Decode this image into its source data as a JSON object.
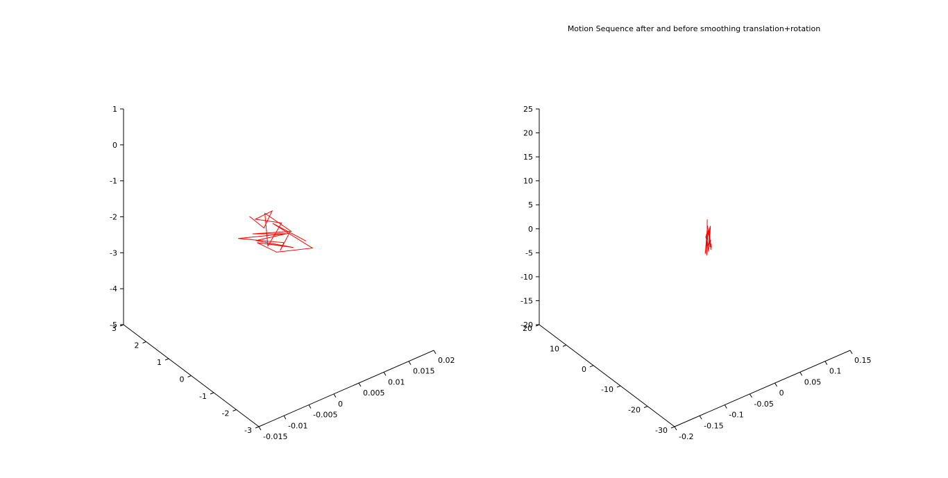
{
  "figure_title": "Motion Sequence after and before smoothing translation+rotation",
  "chart_data": [
    {
      "type": "line3d",
      "series": [
        {
          "color": "#ff0000"
        }
      ],
      "x_axis": {
        "range": [
          -0.015,
          0.02
        ],
        "tick_labels": [
          "-0.015",
          "-0.01",
          "-0.005",
          "0",
          "0.005",
          "0.01",
          "0.015",
          "0.02"
        ]
      },
      "y_axis": {
        "range": [
          -3,
          3
        ],
        "tick_labels": [
          "-3",
          "-2",
          "-1",
          "0",
          "1",
          "2",
          "3"
        ]
      },
      "z_axis": {
        "range": [
          -5,
          1
        ],
        "tick_labels": [
          "-5",
          "-4",
          "-3",
          "-2",
          "-1",
          "0",
          "1"
        ]
      },
      "grid": false,
      "trajectory": [
        [
          -0.002,
          0.3,
          -1.5
        ],
        [
          0.0,
          0.1,
          -1.85
        ],
        [
          0.003,
          0.4,
          -1.7
        ],
        [
          0.001,
          0.7,
          -1.95
        ],
        [
          0.004,
          0.2,
          -2.0
        ],
        [
          -0.001,
          -0.3,
          -2.1
        ],
        [
          0.002,
          0.5,
          -1.75
        ],
        [
          0.005,
          0.0,
          -2.2
        ],
        [
          0.0,
          0.6,
          -2.25
        ],
        [
          0.003,
          -0.2,
          -2.05
        ],
        [
          -0.002,
          0.8,
          -2.35
        ],
        [
          0.004,
          0.1,
          -2.5
        ],
        [
          0.001,
          -0.4,
          -2.3
        ],
        [
          0.006,
          0.3,
          -2.45
        ],
        [
          0.002,
          0.9,
          -2.7
        ],
        [
          0.005,
          -0.1,
          -2.6
        ],
        [
          0.0,
          0.4,
          -2.4
        ],
        [
          0.003,
          0.2,
          -2.75
        ],
        [
          0.007,
          -0.5,
          -2.55
        ],
        [
          0.004,
          0.6,
          -2.2
        ],
        [
          0.008,
          0.0,
          -2.65
        ]
      ]
    },
    {
      "type": "line3d",
      "series": [
        {
          "color": "#ff0000"
        }
      ],
      "x_axis": {
        "range": [
          -0.2,
          0.15
        ],
        "tick_labels": [
          "-0.2",
          "-0.15",
          "-0.1",
          "-0.05",
          "0",
          "0.05",
          "0.1",
          "0.15"
        ]
      },
      "y_axis": {
        "range": [
          -30,
          20
        ],
        "tick_labels": [
          "-30",
          "-20",
          "-10",
          "0",
          "10",
          "20"
        ]
      },
      "z_axis": {
        "range": [
          -20,
          25
        ],
        "tick_labels": [
          "-20",
          "-15",
          "-10",
          "-5",
          "0",
          "5",
          "10",
          "15",
          "20",
          "25"
        ]
      },
      "grid": false,
      "trajectory": [
        [
          0.0,
          -5,
          3.5
        ],
        [
          0.005,
          -4,
          -3.0
        ],
        [
          -0.005,
          -6,
          1.0
        ],
        [
          0.01,
          -3,
          -2.0
        ],
        [
          -0.002,
          -5,
          0.5
        ],
        [
          0.008,
          -4,
          -4.0
        ],
        [
          0.0,
          -6,
          2.0
        ],
        [
          0.012,
          -3,
          -1.0
        ],
        [
          -0.004,
          -5,
          -3.5
        ],
        [
          0.006,
          -4,
          1.5
        ],
        [
          0.002,
          -6,
          -2.5
        ],
        [
          0.015,
          -3,
          -0.5
        ],
        [
          -0.003,
          -5,
          0.0
        ],
        [
          0.009,
          -4,
          -3.0
        ],
        [
          0.001,
          -6,
          2.5
        ],
        [
          0.011,
          -3,
          -1.5
        ],
        [
          -0.001,
          -5,
          -4.0
        ],
        [
          0.007,
          -4,
          0.5
        ],
        [
          0.003,
          -6,
          -2.0
        ],
        [
          0.014,
          -3,
          -3.5
        ],
        [
          0.004,
          -5,
          1.0
        ],
        [
          0.01,
          -4,
          -2.5
        ],
        [
          0.018,
          -3,
          -2.5
        ]
      ]
    }
  ]
}
